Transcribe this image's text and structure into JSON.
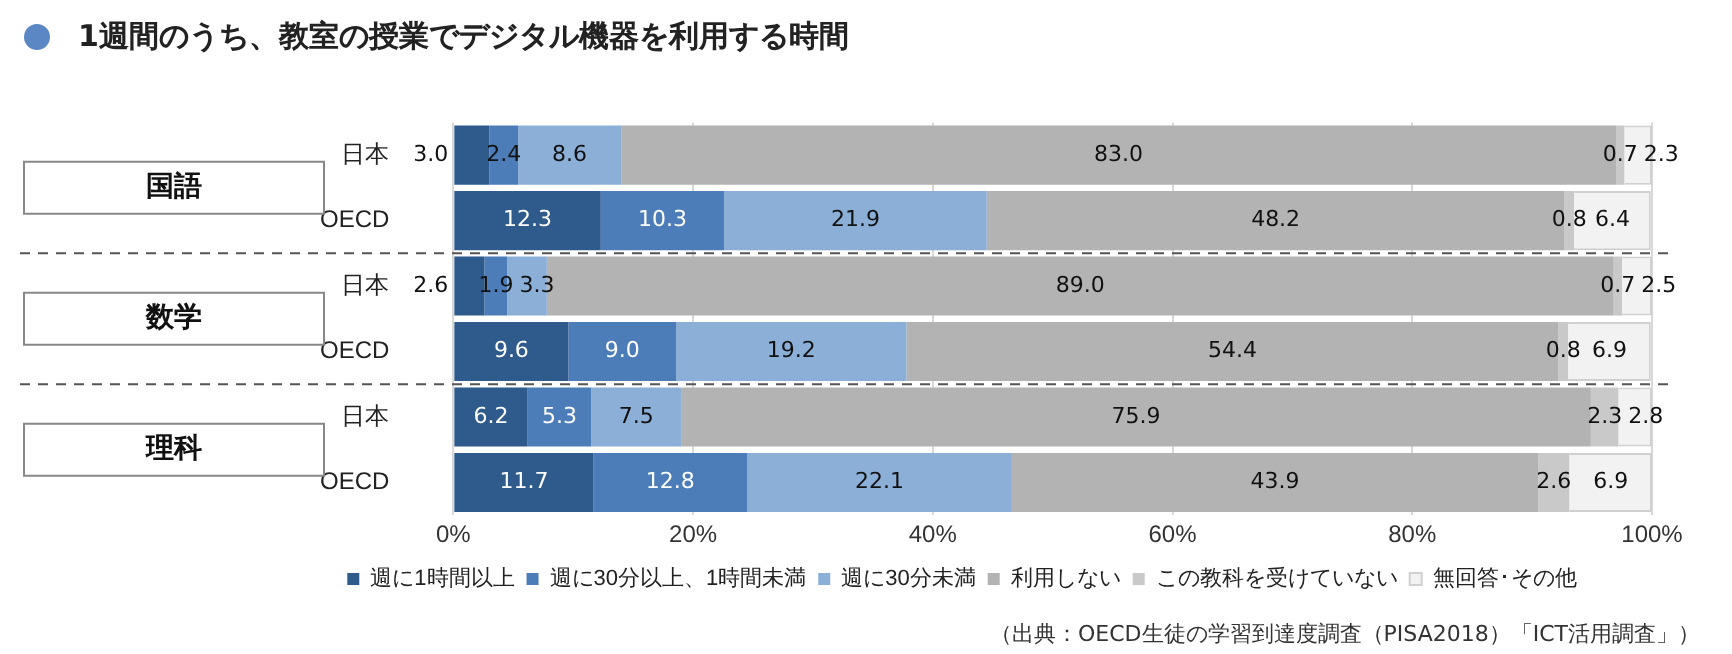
{
  "chart_data": {
    "type": "bar",
    "orientation": "horizontal",
    "stacked": true,
    "title": "1週間のうち、教室の授業でデジタル機器を利用する時間",
    "categories": [
      "日本",
      "OECD",
      "日本",
      "OECD",
      "日本",
      "OECD"
    ],
    "series": [
      {
        "name": "週に1時間以上",
        "color": "#2e5a8c",
        "values": [
          3.0,
          12.3,
          2.6,
          9.6,
          6.2,
          11.7
        ],
        "value_labels": [
          "3.0",
          "12.3",
          "2.6",
          "9.6",
          "6.2",
          "11.7"
        ]
      },
      {
        "name": "週に30分以上、1時間未満",
        "color": "#4d7db8",
        "values": [
          2.4,
          10.3,
          1.9,
          9.0,
          5.3,
          12.8
        ],
        "value_labels": [
          "2.4",
          "10.3",
          "1.9",
          "9.0",
          "5.3",
          "12.8"
        ]
      },
      {
        "name": "週に30分未満",
        "color": "#8cafd8",
        "values": [
          8.6,
          21.9,
          3.3,
          19.2,
          7.5,
          22.1
        ],
        "value_labels": [
          "8.6",
          "21.9",
          "3.3",
          "19.2",
          "7.5",
          "22.1"
        ]
      },
      {
        "name": "利用しない",
        "color": "#b3b3b3",
        "values": [
          83.0,
          48.2,
          89.0,
          54.4,
          75.9,
          43.9
        ],
        "value_labels": [
          "83.0",
          "48.2",
          "89.0",
          "54.4",
          "75.9",
          "43.9"
        ]
      },
      {
        "name": "この教科を受けていない",
        "color": "#c9c9c9",
        "values": [
          0.7,
          0.8,
          0.7,
          0.8,
          2.3,
          2.6
        ],
        "value_labels": [
          "0.7",
          "0.8",
          "0.7",
          "0.8",
          "2.3",
          "2.6"
        ]
      },
      {
        "name": "無回答･その他",
        "color": "#f2f2f2",
        "values": [
          2.3,
          6.4,
          2.5,
          6.9,
          2.8,
          6.9
        ],
        "value_labels": [
          "2.3",
          "6.4",
          "2.5",
          "6.9",
          "2.8",
          "6.9"
        ]
      }
    ],
    "xlim": [
      0,
      100
    ],
    "xticks": [
      {
        "value": 0,
        "label": "0%"
      },
      {
        "value": 20,
        "label": "20%"
      },
      {
        "value": 40,
        "label": "40%"
      },
      {
        "value": 60,
        "label": "60%"
      },
      {
        "value": 80,
        "label": "80%"
      },
      {
        "value": 100,
        "label": "100%"
      }
    ],
    "grid": "x",
    "legend": "bottom",
    "annotations": [
      "国語",
      "数学",
      "理科",
      "（出典：OECD生徒の学習到達度調査（PISA2018）「ICT活用調査」）"
    ]
  }
}
